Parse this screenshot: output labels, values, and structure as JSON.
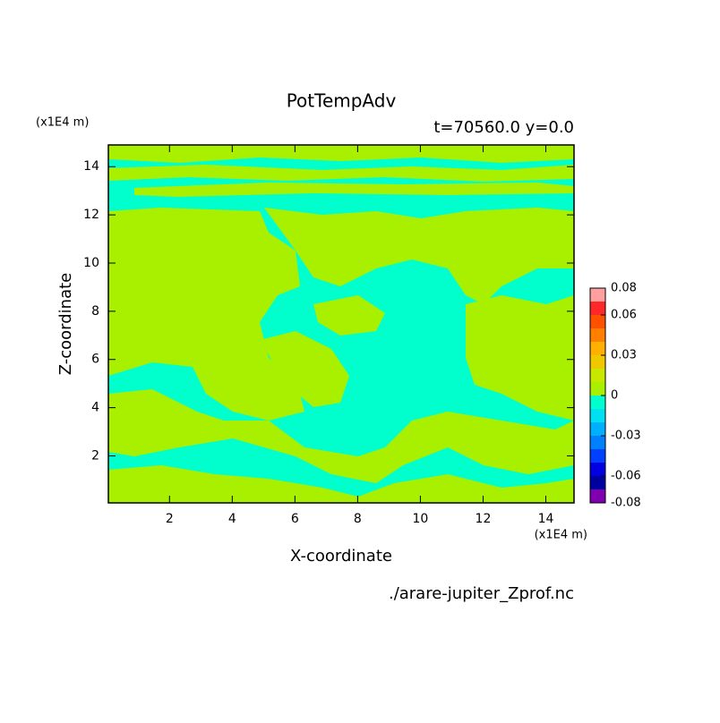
{
  "chart_data": {
    "type": "contour",
    "title": "PotTempAdv",
    "subtitle": "t=70560.0 y=0.0",
    "x_label": "X-coordinate",
    "y_label": "Z-coordinate",
    "x_unit": "(x1E4 m)",
    "y_unit": "(x1E4 m)",
    "footer": "./arare-jupiter_Zprof.nc",
    "xlim": [
      0.05,
      14.9
    ],
    "ylim": [
      0.05,
      14.9
    ],
    "xticks": [
      2,
      4,
      6,
      8,
      10,
      12,
      14
    ],
    "yticks": [
      2,
      4,
      6,
      8,
      10,
      12,
      14
    ],
    "colorbar": {
      "lim": [
        -0.08,
        0.08
      ],
      "levels": [
        -0.08,
        -0.07,
        -0.06,
        -0.05,
        -0.04,
        -0.03,
        -0.02,
        -0.01,
        0,
        0.01,
        0.02,
        0.03,
        0.04,
        0.05,
        0.06,
        0.07,
        0.08
      ],
      "colors": [
        "#8000b0",
        "#0000a0",
        "#0000e0",
        "#0040ff",
        "#0080ff",
        "#00b0ff",
        "#00e0f0",
        "#00ffcc",
        "#a8f000",
        "#c8e800",
        "#f0c800",
        "#ffb000",
        "#ff8000",
        "#ff5000",
        "#ff2828",
        "#ffa0a0"
      ],
      "ticks": [
        0.08,
        0.06,
        0.03,
        0,
        -0.03,
        -0.06,
        -0.08
      ]
    }
  }
}
